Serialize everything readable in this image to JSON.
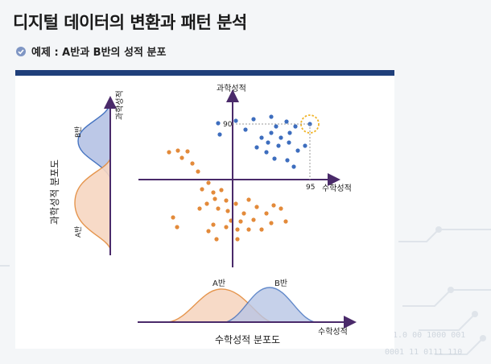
{
  "title": "디지털 데이터의 변환과 패턴 분석",
  "subtitle": "예제 : A반과 B반의 성적 분포",
  "binary": {
    "line1": "1.0  00  1000  001",
    "line2": "0001  11  0111  110"
  },
  "diagram": {
    "science_axis_label": "과학성적",
    "math_axis_label": "수학성적",
    "threshold_y": "90",
    "threshold_x": "95",
    "left_axis_label": "과학성적",
    "left_title": "과학성적 분포도",
    "left_curve_a": "A반",
    "left_curve_b": "B반",
    "bottom_axis_label": "수학성적",
    "bottom_title": "수학성적 분포도",
    "bottom_curve_a": "A반",
    "bottom_curve_b": "B반"
  },
  "colors": {
    "class_a": "#e38a3a",
    "class_b": "#3d6dbe",
    "class_a_fill": "#f7d7c2",
    "class_b_fill": "#b9c6e6",
    "axis": "#4a2a6a",
    "highlight": "#f0b429",
    "header_bar": "#1f3f7a"
  },
  "icons": [
    "check-circle-icon"
  ]
}
